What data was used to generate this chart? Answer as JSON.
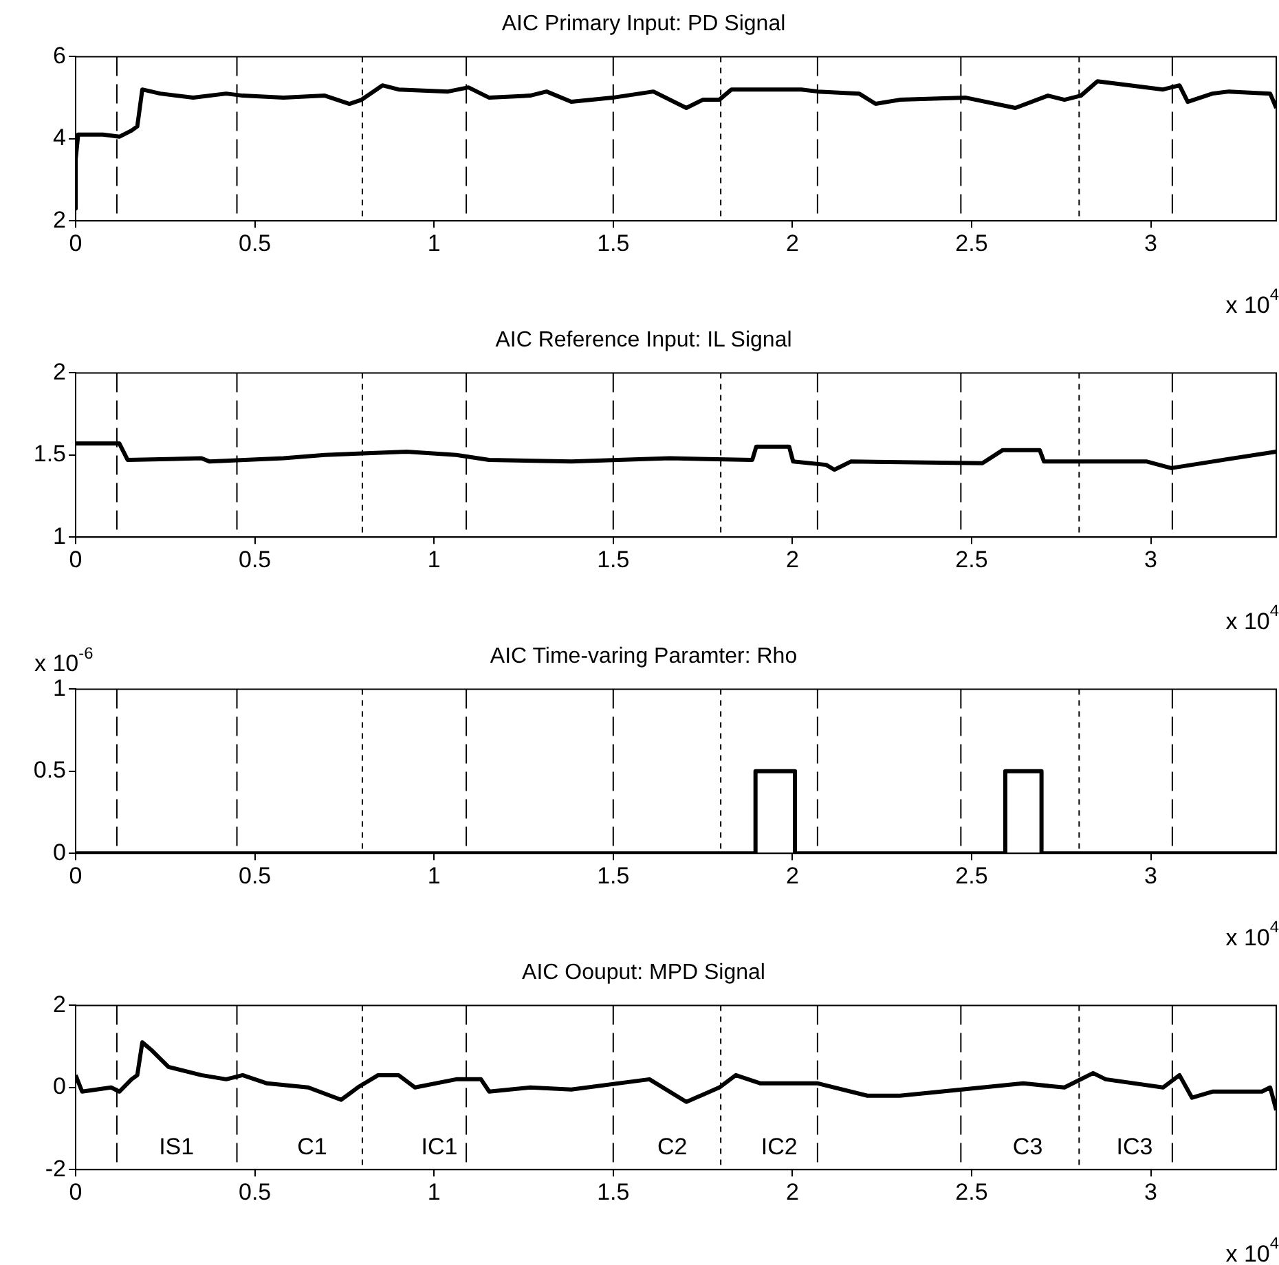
{
  "chart_data": [
    {
      "type": "line",
      "title": "AIC Primary Input: PD Signal",
      "xlim": [
        0,
        3.35
      ],
      "ylim": [
        2,
        6
      ],
      "yticks": [
        2,
        4,
        6
      ],
      "xticks": [
        0,
        0.5,
        1,
        1.5,
        2,
        2.5,
        3
      ],
      "series": [
        {
          "color": "#000000",
          "x": [
            0,
            0.0001,
            0.007,
            0.076,
            0.122,
            0.156,
            0.172,
            0.186,
            0.236,
            0.328,
            0.42,
            0.466,
            0.58,
            0.695,
            0.764,
            0.798,
            0.856,
            0.901,
            1.039,
            1.096,
            1.154,
            1.268,
            1.314,
            1.383,
            1.498,
            1.612,
            1.704,
            1.75,
            1.796,
            1.83,
            1.979,
            2.025,
            2.071,
            2.186,
            2.232,
            2.3,
            2.484,
            2.622,
            2.713,
            2.759,
            2.805,
            2.851,
            2.943,
            3.034,
            3.08,
            3.103,
            3.172,
            3.218,
            3.333,
            3.35
          ],
          "values": [
            2.3,
            3.5,
            4.1,
            4.1,
            4.05,
            4.2,
            4.3,
            5.2,
            5.1,
            5.0,
            5.1,
            5.05,
            5.0,
            5.05,
            4.85,
            4.95,
            5.3,
            5.2,
            5.15,
            5.25,
            5.0,
            5.05,
            5.15,
            4.9,
            5.0,
            5.15,
            4.75,
            4.95,
            4.95,
            5.2,
            5.2,
            5.2,
            5.15,
            5.1,
            4.85,
            4.95,
            5.0,
            4.75,
            5.05,
            4.95,
            5.05,
            5.4,
            5.3,
            5.2,
            5.3,
            4.9,
            5.1,
            5.15,
            5.1,
            4.75
          ]
        }
      ],
      "ref_lines": [
        {
          "axis": "x",
          "value": 0.115,
          "line_style": "dashed"
        },
        {
          "axis": "x",
          "value": 0.45,
          "line_style": "dashed"
        },
        {
          "axis": "x",
          "value": 0.8,
          "line_style": "dotted"
        },
        {
          "axis": "x",
          "value": 1.09,
          "line_style": "dashed"
        },
        {
          "axis": "x",
          "value": 1.5,
          "line_style": "dashed"
        },
        {
          "axis": "x",
          "value": 1.8,
          "line_style": "dotted"
        },
        {
          "axis": "x",
          "value": 2.07,
          "line_style": "dashed"
        },
        {
          "axis": "x",
          "value": 2.47,
          "line_style": "dashed"
        },
        {
          "axis": "x",
          "value": 2.8,
          "line_style": "dotted"
        },
        {
          "axis": "x",
          "value": 3.06,
          "line_style": "dashed"
        }
      ],
      "annotations": [
        "x 10$^{4}$"
      ]
    },
    {
      "type": "line",
      "title": "AIC Reference Input: IL Signal",
      "xlim": [
        0,
        3.35
      ],
      "ylim": [
        1,
        2
      ],
      "yticks": [
        1,
        1.5,
        2
      ],
      "xticks": [
        0,
        0.5,
        1,
        1.5,
        2,
        2.5,
        3
      ],
      "series": [
        {
          "color": "#000000",
          "x": [
            0,
            0.122,
            0.145,
            0.351,
            0.374,
            0.58,
            0.695,
            0.924,
            1.062,
            1.154,
            1.383,
            1.658,
            1.888,
            1.899,
            1.991,
            2.002,
            2.094,
            2.117,
            2.163,
            2.53,
            2.587,
            2.69,
            2.702,
            2.989,
            3.057,
            3.172,
            3.35
          ],
          "values": [
            1.57,
            1.57,
            1.47,
            1.48,
            1.46,
            1.48,
            1.5,
            1.52,
            1.5,
            1.47,
            1.46,
            1.48,
            1.47,
            1.55,
            1.55,
            1.46,
            1.44,
            1.41,
            1.46,
            1.45,
            1.53,
            1.53,
            1.46,
            1.46,
            1.42,
            1.46,
            1.52
          ]
        }
      ],
      "ref_lines": [
        {
          "axis": "x",
          "value": 0.115,
          "line_style": "dashed"
        },
        {
          "axis": "x",
          "value": 0.45,
          "line_style": "dashed"
        },
        {
          "axis": "x",
          "value": 0.8,
          "line_style": "dotted"
        },
        {
          "axis": "x",
          "value": 1.09,
          "line_style": "dashed"
        },
        {
          "axis": "x",
          "value": 1.5,
          "line_style": "dashed"
        },
        {
          "axis": "x",
          "value": 1.8,
          "line_style": "dotted"
        },
        {
          "axis": "x",
          "value": 2.07,
          "line_style": "dashed"
        },
        {
          "axis": "x",
          "value": 2.47,
          "line_style": "dashed"
        },
        {
          "axis": "x",
          "value": 2.8,
          "line_style": "dotted"
        },
        {
          "axis": "x",
          "value": 3.06,
          "line_style": "dashed"
        }
      ],
      "annotations": [
        "x 10$^{4}$"
      ]
    },
    {
      "type": "line",
      "title": "AIC Time-varing Paramter: Rho",
      "xlim": [
        0,
        3.35
      ],
      "ylim": [
        0,
        1
      ],
      "yticks": [
        0,
        0.5,
        1
      ],
      "xticks": [
        0,
        0.5,
        1,
        1.5,
        2,
        2.5,
        3
      ],
      "series": [
        {
          "color": "#000000",
          "x": [
            0,
            1.897,
            1.897,
            2.007,
            2.007,
            2.594,
            2.594,
            2.695,
            2.695,
            3.35
          ],
          "values": [
            0,
            0,
            0.5,
            0.5,
            0,
            0,
            0.5,
            0.5,
            0,
            0
          ]
        }
      ],
      "ref_lines": [
        {
          "axis": "x",
          "value": 0.115,
          "line_style": "dashed"
        },
        {
          "axis": "x",
          "value": 0.45,
          "line_style": "dashed"
        },
        {
          "axis": "x",
          "value": 0.8,
          "line_style": "dotted"
        },
        {
          "axis": "x",
          "value": 1.09,
          "line_style": "dashed"
        },
        {
          "axis": "x",
          "value": 1.5,
          "line_style": "dashed"
        },
        {
          "axis": "x",
          "value": 1.8,
          "line_style": "dotted"
        },
        {
          "axis": "x",
          "value": 2.07,
          "line_style": "dashed"
        },
        {
          "axis": "x",
          "value": 2.47,
          "line_style": "dashed"
        },
        {
          "axis": "x",
          "value": 2.8,
          "line_style": "dotted"
        },
        {
          "axis": "x",
          "value": 3.06,
          "line_style": "dashed"
        }
      ],
      "annotations": [
        "x 10$^{4}$",
        "x 10$^{-6}$"
      ]
    },
    {
      "type": "line",
      "title": "AIC Oouput: MPD Signal",
      "xlim": [
        0,
        3.35
      ],
      "ylim": [
        -2,
        2
      ],
      "yticks": [
        -2,
        0,
        2
      ],
      "xticks": [
        0,
        0.5,
        1,
        1.5,
        2,
        2.5,
        3
      ],
      "series": [
        {
          "color": "#000000",
          "x": [
            0,
            0.018,
            0.099,
            0.122,
            0.156,
            0.172,
            0.186,
            0.213,
            0.259,
            0.351,
            0.42,
            0.466,
            0.534,
            0.649,
            0.741,
            0.787,
            0.844,
            0.901,
            0.947,
            1.062,
            1.131,
            1.154,
            1.268,
            1.383,
            1.601,
            1.704,
            1.796,
            1.842,
            1.911,
            2.071,
            2.209,
            2.3,
            2.415,
            2.53,
            2.644,
            2.759,
            2.839,
            2.874,
            3.034,
            3.08,
            3.115,
            3.172,
            3.31,
            3.333,
            3.35
          ],
          "values": [
            0.3,
            -0.1,
            0.0,
            -0.1,
            0.2,
            0.3,
            1.1,
            0.9,
            0.5,
            0.3,
            0.2,
            0.3,
            0.1,
            0.0,
            -0.3,
            0.0,
            0.3,
            0.3,
            0.0,
            0.2,
            0.2,
            -0.1,
            0.0,
            -0.05,
            0.2,
            -0.35,
            0.0,
            0.3,
            0.1,
            0.1,
            -0.2,
            -0.2,
            -0.1,
            0.0,
            0.1,
            0.0,
            0.35,
            0.2,
            0.0,
            0.3,
            -0.25,
            -0.1,
            -0.1,
            0.0,
            -0.55
          ]
        }
      ],
      "ref_lines": [
        {
          "axis": "x",
          "value": 0.115,
          "line_style": "dashed"
        },
        {
          "axis": "x",
          "value": 0.45,
          "line_style": "dashed"
        },
        {
          "axis": "x",
          "value": 0.8,
          "line_style": "dotted"
        },
        {
          "axis": "x",
          "value": 1.09,
          "line_style": "dashed"
        },
        {
          "axis": "x",
          "value": 1.5,
          "line_style": "dashed"
        },
        {
          "axis": "x",
          "value": 1.8,
          "line_style": "dotted"
        },
        {
          "axis": "x",
          "value": 2.07,
          "line_style": "dashed"
        },
        {
          "axis": "x",
          "value": 2.47,
          "line_style": "dashed"
        },
        {
          "axis": "x",
          "value": 2.8,
          "line_style": "dotted"
        },
        {
          "axis": "x",
          "value": 3.06,
          "line_style": "dashed"
        }
      ],
      "annotations": [
        "x 10$^{4}$",
        "IS1",
        "C1",
        "IC1",
        "C2",
        "IC2",
        "C3",
        "IC3"
      ]
    }
  ]
}
